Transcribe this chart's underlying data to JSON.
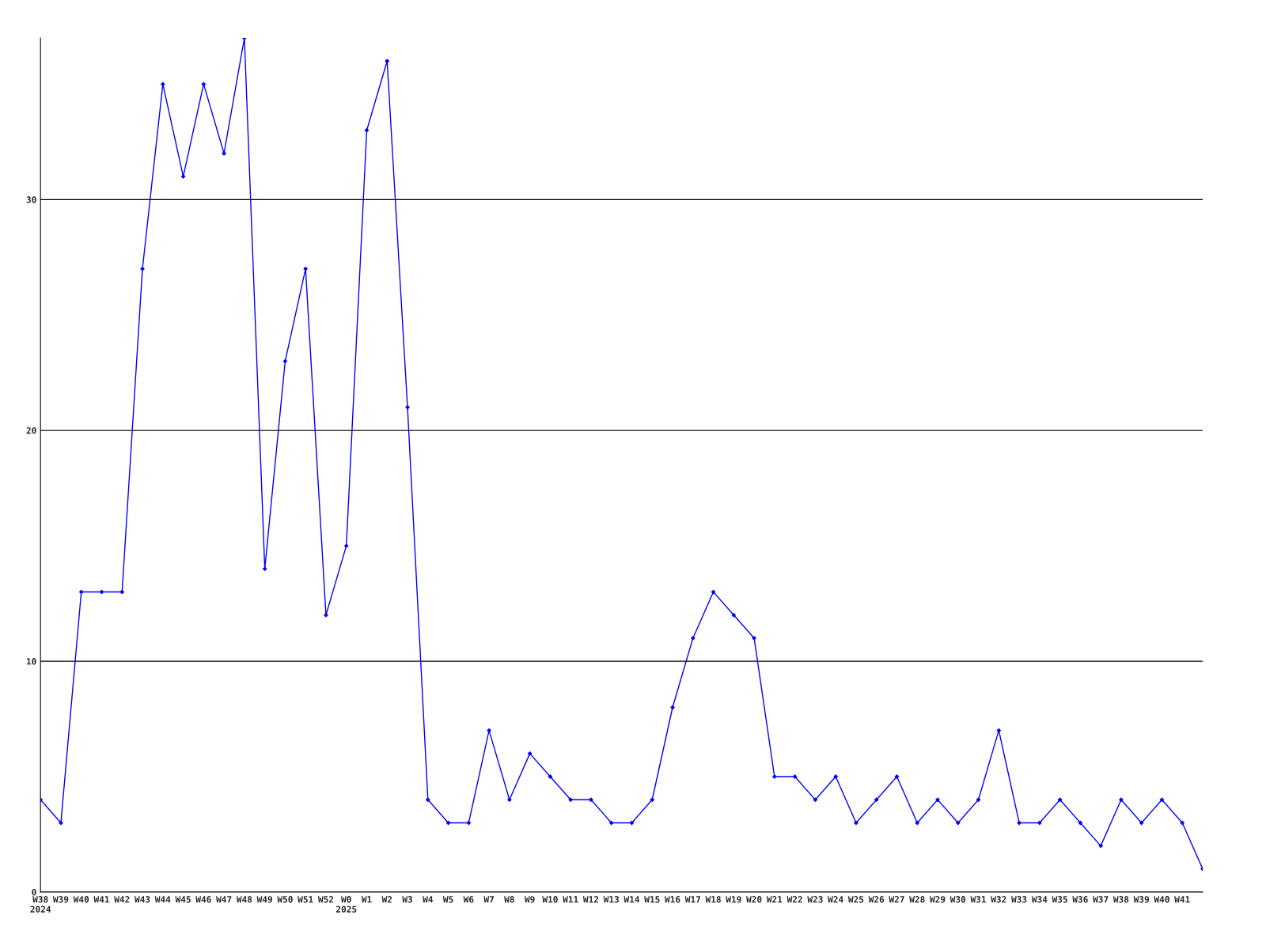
{
  "chart_data": {
    "type": "line",
    "categories": [
      "W38\n2024",
      "W39",
      "W40",
      "W41",
      "W42",
      "W43",
      "W44",
      "W45",
      "W46",
      "W47",
      "W48",
      "W49",
      "W50",
      "W51",
      "W52",
      "W0\n2025",
      "W1",
      "W2",
      "W3",
      "W4",
      "W5",
      "W6",
      "W7",
      "W8",
      "W9",
      "W10",
      "W11",
      "W12",
      "W13",
      "W14",
      "W15",
      "W16",
      "W17",
      "W18",
      "W19",
      "W20",
      "W21",
      "W22",
      "W23",
      "W24",
      "W25",
      "W26",
      "W27",
      "W28",
      "W29",
      "W30",
      "W31",
      "W32",
      "W33",
      "W34",
      "W35",
      "W36",
      "W37",
      "W38",
      "W39",
      "W40",
      "W41",
      null
    ],
    "series": [
      {
        "color": "#0000ff",
        "values": [
          4,
          3,
          13,
          13,
          13,
          27,
          35,
          31,
          35,
          32,
          37,
          14,
          23,
          27,
          12,
          15,
          33,
          36,
          21,
          4,
          3,
          3,
          7,
          4,
          6,
          5,
          4,
          4,
          3,
          3,
          4,
          8,
          11,
          13,
          12,
          11,
          5,
          5,
          4,
          5,
          3,
          4,
          5,
          3,
          4,
          3,
          4,
          7,
          3,
          3,
          4,
          3,
          2,
          4,
          3,
          4,
          3,
          1
        ]
      }
    ],
    "ylim": [
      0,
      37
    ],
    "yticks": [
      0,
      10,
      20,
      30
    ],
    "grid": "y",
    "marker": "diamond",
    "line_style": "solid"
  }
}
